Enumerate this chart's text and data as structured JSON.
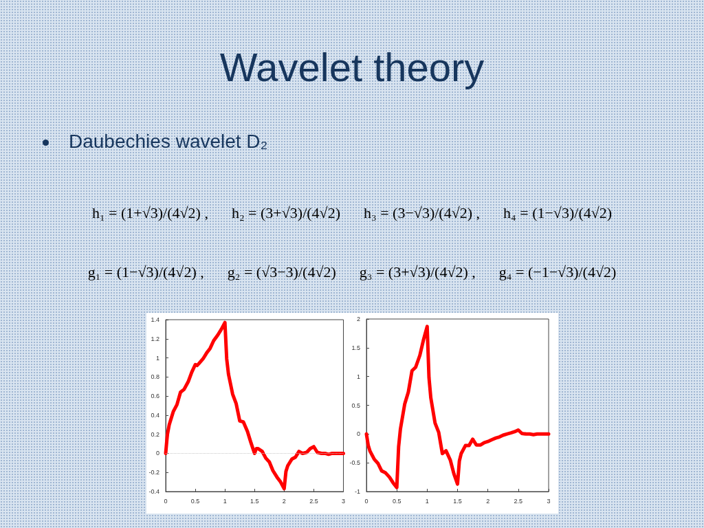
{
  "chart_data": [
    {
      "type": "other",
      "title": "Wavelet theory",
      "subtitle": "Daubechies wavelet D₂",
      "annotations": [
        "h₁ = (1+√3)/(4√2) ,",
        "h₂ = (3+√3)/(4√2)",
        "h₃ = (3−√3)/(4√2) ,",
        "h₄ = (1−√3)/(4√2)",
        "g₁ = (1−√3)/(4√2) ,",
        "g₂ = (√3−3)/(4√2)",
        "g₃ = (3+√3)/(4√2) ,",
        "g₄ = (−1−√3)/(4√2)"
      ]
    },
    {
      "type": "line",
      "color": "#ff0000",
      "line_style": "solid",
      "x": [
        0,
        0.02,
        0.03,
        0.06,
        0.13,
        0.19,
        0.25,
        0.31,
        0.38,
        0.44,
        0.5,
        0.53,
        0.56,
        0.63,
        0.69,
        0.75,
        0.81,
        0.88,
        0.94,
        1,
        1.03,
        1.06,
        1.13,
        1.19,
        1.25,
        1.31,
        1.38,
        1.44,
        1.5,
        1.53,
        1.56,
        1.63,
        1.69,
        1.75,
        1.81,
        1.88,
        1.94,
        2,
        2.03,
        2.06,
        2.13,
        2.19,
        2.25,
        2.31,
        2.38,
        2.44,
        2.5,
        2.56,
        2.63,
        2.69,
        2.75,
        2.81,
        2.88,
        2.94,
        3
      ],
      "values": [
        0,
        0.14,
        0.2,
        0.3,
        0.44,
        0.51,
        0.64,
        0.67,
        0.75,
        0.85,
        0.93,
        0.92,
        0.94,
        0.99,
        1.05,
        1.1,
        1.18,
        1.24,
        1.3,
        1.37,
        0.99,
        0.83,
        0.62,
        0.52,
        0.34,
        0.33,
        0.23,
        0.11,
        0,
        0.05,
        0.05,
        0.02,
        -0.05,
        -0.09,
        -0.18,
        -0.25,
        -0.3,
        -0.37,
        -0.19,
        -0.13,
        -0.06,
        -0.04,
        0.02,
        0,
        0.01,
        0.05,
        0.07,
        0.01,
        0,
        0,
        -0.01,
        0,
        0,
        0,
        0
      ],
      "xlim": [
        0,
        3
      ],
      "xticks": [
        0,
        0.5,
        1,
        1.5,
        2,
        2.5,
        3
      ],
      "ylim": [
        -0.4,
        1.4
      ],
      "yticks": [
        -0.4,
        -0.2,
        0,
        0.2,
        0.4,
        0.6,
        0.8,
        1,
        1.2,
        1.4
      ],
      "ref_lines": [
        {
          "axis": "y",
          "value": 0,
          "color": "#c8c8c8",
          "line_style": "dotted"
        }
      ]
    },
    {
      "type": "line",
      "color": "#ff0000",
      "line_style": "solid",
      "x": [
        0,
        0.03,
        0.06,
        0.13,
        0.19,
        0.25,
        0.31,
        0.38,
        0.44,
        0.5,
        0.53,
        0.56,
        0.63,
        0.69,
        0.75,
        0.81,
        0.88,
        0.94,
        1,
        1.03,
        1.06,
        1.13,
        1.19,
        1.25,
        1.31,
        1.38,
        1.44,
        1.5,
        1.53,
        1.56,
        1.63,
        1.69,
        1.75,
        1.81,
        1.88,
        1.94,
        2,
        2.06,
        2.13,
        2.19,
        2.25,
        2.31,
        2.38,
        2.44,
        2.5,
        2.56,
        2.63,
        2.69,
        2.75,
        2.81,
        2.88,
        2.94,
        3
      ],
      "values": [
        0,
        -0.2,
        -0.3,
        -0.44,
        -0.51,
        -0.64,
        -0.67,
        -0.75,
        -0.85,
        -0.93,
        -0.22,
        0.09,
        0.52,
        0.73,
        1.1,
        1.16,
        1.37,
        1.64,
        1.87,
        0.98,
        0.63,
        0.19,
        0.03,
        -0.34,
        -0.29,
        -0.45,
        -0.69,
        -0.87,
        -0.47,
        -0.34,
        -0.2,
        -0.2,
        -0.09,
        -0.19,
        -0.19,
        -0.15,
        -0.13,
        -0.1,
        -0.07,
        -0.05,
        -0.02,
        0,
        0.02,
        0.04,
        0.07,
        0.01,
        0,
        0,
        -0.01,
        0,
        0,
        0,
        0
      ],
      "xlim": [
        0,
        3
      ],
      "xticks": [
        0,
        0.5,
        1,
        1.5,
        2,
        2.5,
        3
      ],
      "ylim": [
        -1,
        2
      ],
      "yticks": [
        -1,
        -0.5,
        0,
        0.5,
        1,
        1.5,
        2
      ]
    }
  ]
}
